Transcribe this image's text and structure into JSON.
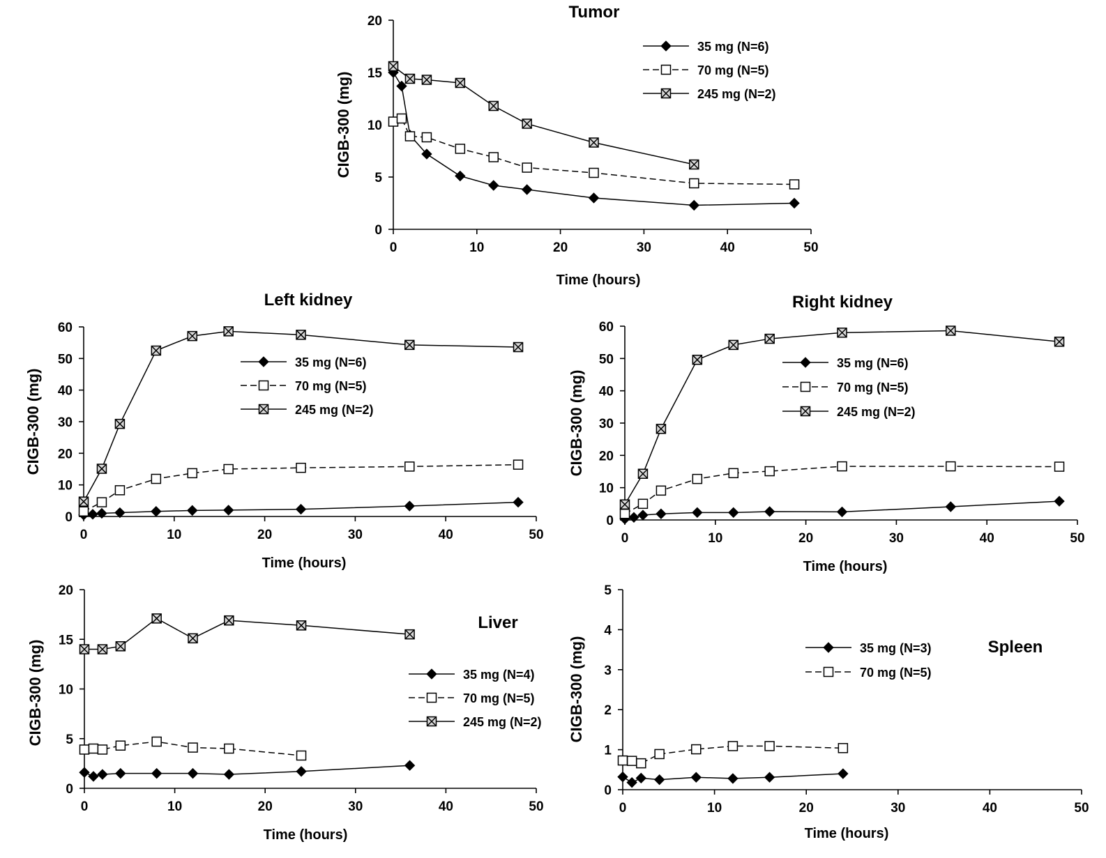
{
  "chart_data": [
    {
      "type": "line",
      "title": "Tumor",
      "xlabel": "Time (hours)",
      "ylabel": "CIGB-300 (mg)",
      "xlim": [
        0,
        50
      ],
      "ylim": [
        0,
        20
      ],
      "xticks": [
        "0",
        "10",
        "20",
        "30",
        "40",
        "50"
      ],
      "yticks": [
        "0",
        "5",
        "10",
        "15",
        "20"
      ],
      "legend_position": "top-right",
      "series": [
        {
          "name": "35 mg (N=6)",
          "marker": "diamond",
          "line": "solid",
          "x": [
            0,
            1,
            2,
            4,
            8,
            12,
            16,
            24,
            36,
            48
          ],
          "y": [
            15.0,
            13.7,
            9.0,
            7.2,
            5.1,
            4.2,
            3.8,
            3.0,
            2.3,
            2.5
          ]
        },
        {
          "name": "70 mg (N=5)",
          "marker": "square",
          "line": "dashed",
          "x": [
            0,
            1,
            2,
            4,
            8,
            12,
            16,
            24,
            36,
            48
          ],
          "y": [
            10.3,
            10.6,
            8.9,
            8.8,
            7.7,
            6.9,
            5.9,
            5.4,
            4.4,
            4.3
          ]
        },
        {
          "name": "245 mg (N=2)",
          "marker": "crossbox",
          "line": "solid",
          "x": [
            0,
            2,
            4,
            8,
            12,
            16,
            24,
            36
          ],
          "y": [
            15.6,
            14.4,
            14.3,
            14.0,
            11.8,
            10.1,
            8.3,
            6.2
          ]
        }
      ]
    },
    {
      "type": "line",
      "title": "Left kidney",
      "xlabel": "Time (hours)",
      "ylabel": "CIGB-300 (mg)",
      "xlim": [
        0,
        50
      ],
      "ylim": [
        0,
        60
      ],
      "xticks": [
        "0",
        "10",
        "20",
        "30",
        "40",
        "50"
      ],
      "yticks": [
        "0",
        "10",
        "20",
        "30",
        "40",
        "50",
        "60"
      ],
      "legend_position": "upper-middle",
      "series": [
        {
          "name": "35 mg (N=6)",
          "marker": "diamond",
          "line": "solid",
          "x": [
            0,
            1,
            2,
            4,
            8,
            12,
            16,
            24,
            36,
            48
          ],
          "y": [
            0.5,
            0.7,
            1.0,
            1.2,
            1.6,
            1.9,
            2.0,
            2.3,
            3.3,
            4.5
          ]
        },
        {
          "name": "70 mg (N=5)",
          "marker": "square",
          "line": "dashed",
          "x": [
            0,
            2,
            4,
            8,
            12,
            16,
            24,
            36,
            48
          ],
          "y": [
            1.6,
            4.5,
            8.3,
            11.9,
            13.7,
            15.0,
            15.4,
            15.8,
            16.4
          ]
        },
        {
          "name": "245 mg (N=2)",
          "marker": "crossbox",
          "line": "solid",
          "x": [
            0,
            2,
            4,
            8,
            12,
            16,
            24,
            36,
            48
          ],
          "y": [
            4.7,
            15.1,
            29.3,
            52.5,
            57.1,
            58.6,
            57.5,
            54.3,
            53.6
          ]
        }
      ]
    },
    {
      "type": "line",
      "title": "Right  kidney",
      "xlabel": "Time (hours)",
      "ylabel": "CIGB-300 (mg)",
      "xlim": [
        0,
        50
      ],
      "ylim": [
        0,
        60
      ],
      "xticks": [
        "0",
        "10",
        "20",
        "30",
        "40",
        "50"
      ],
      "yticks": [
        "0",
        "10",
        "20",
        "30",
        "40",
        "50",
        "60"
      ],
      "legend_position": "upper-middle",
      "series": [
        {
          "name": "35 mg (N=6)",
          "marker": "diamond",
          "line": "solid",
          "x": [
            0,
            1,
            2,
            4,
            8,
            12,
            16,
            24,
            36,
            48
          ],
          "y": [
            0.3,
            0.8,
            1.5,
            1.9,
            2.3,
            2.3,
            2.6,
            2.5,
            4.1,
            5.8
          ]
        },
        {
          "name": "70 mg (N=5)",
          "marker": "square",
          "line": "dashed",
          "x": [
            0,
            2,
            4,
            8,
            12,
            16,
            24,
            36,
            48
          ],
          "y": [
            1.9,
            5.0,
            9.1,
            12.7,
            14.5,
            15.1,
            16.6,
            16.6,
            16.5
          ]
        },
        {
          "name": "245 mg (N=2)",
          "marker": "crossbox",
          "line": "solid",
          "x": [
            0,
            2,
            4,
            8,
            12,
            16,
            24,
            36,
            48
          ],
          "y": [
            4.8,
            14.3,
            28.2,
            49.6,
            54.2,
            56.1,
            58.0,
            58.6,
            55.2
          ]
        }
      ]
    },
    {
      "type": "line",
      "title": "Liver",
      "xlabel": "Time (hours)",
      "ylabel": "CIGB-300 (mg)",
      "xlim": [
        0,
        50
      ],
      "ylim": [
        0,
        20
      ],
      "xticks": [
        "0",
        "10",
        "20",
        "30",
        "40",
        "50"
      ],
      "yticks": [
        "0",
        "5",
        "10",
        "15",
        "20"
      ],
      "legend_position": "right",
      "series": [
        {
          "name": "35 mg (N=4)",
          "marker": "diamond",
          "line": "solid",
          "x": [
            0,
            1,
            2,
            4,
            8,
            12,
            16,
            24,
            36
          ],
          "y": [
            1.6,
            1.2,
            1.4,
            1.5,
            1.5,
            1.5,
            1.4,
            1.7,
            2.3
          ]
        },
        {
          "name": "70 mg (N=5)",
          "marker": "square",
          "line": "dashed",
          "x": [
            0,
            1,
            2,
            4,
            8,
            12,
            16,
            24
          ],
          "y": [
            3.9,
            4.0,
            3.9,
            4.3,
            4.7,
            4.1,
            4.0,
            3.3
          ]
        },
        {
          "name": "245 mg (N=2)",
          "marker": "crossbox",
          "line": "solid",
          "x": [
            0,
            2,
            4,
            8,
            12,
            16,
            24,
            36
          ],
          "y": [
            14.0,
            14.0,
            14.3,
            17.1,
            15.1,
            16.9,
            16.4,
            15.5
          ]
        }
      ]
    },
    {
      "type": "line",
      "title": "Spleen",
      "xlabel": "Time (hours)",
      "ylabel": "CIGB-300 (mg)",
      "xlim": [
        0,
        50
      ],
      "ylim": [
        0,
        5
      ],
      "xticks": [
        "0",
        "10",
        "20",
        "30",
        "40",
        "50"
      ],
      "yticks": [
        "0",
        "1",
        "2",
        "3",
        "4",
        "5"
      ],
      "legend_position": "center",
      "series": [
        {
          "name": "35 mg (N=3)",
          "marker": "diamond",
          "line": "solid",
          "x": [
            0,
            1,
            2,
            4,
            8,
            12,
            16,
            24
          ],
          "y": [
            0.32,
            0.18,
            0.29,
            0.25,
            0.31,
            0.28,
            0.31,
            0.4
          ]
        },
        {
          "name": "70 mg (N=5)",
          "marker": "square",
          "line": "dashed",
          "x": [
            0,
            1,
            2,
            4,
            8,
            12,
            16,
            24
          ],
          "y": [
            0.73,
            0.72,
            0.66,
            0.89,
            1.01,
            1.09,
            1.09,
            1.04
          ]
        }
      ]
    }
  ]
}
